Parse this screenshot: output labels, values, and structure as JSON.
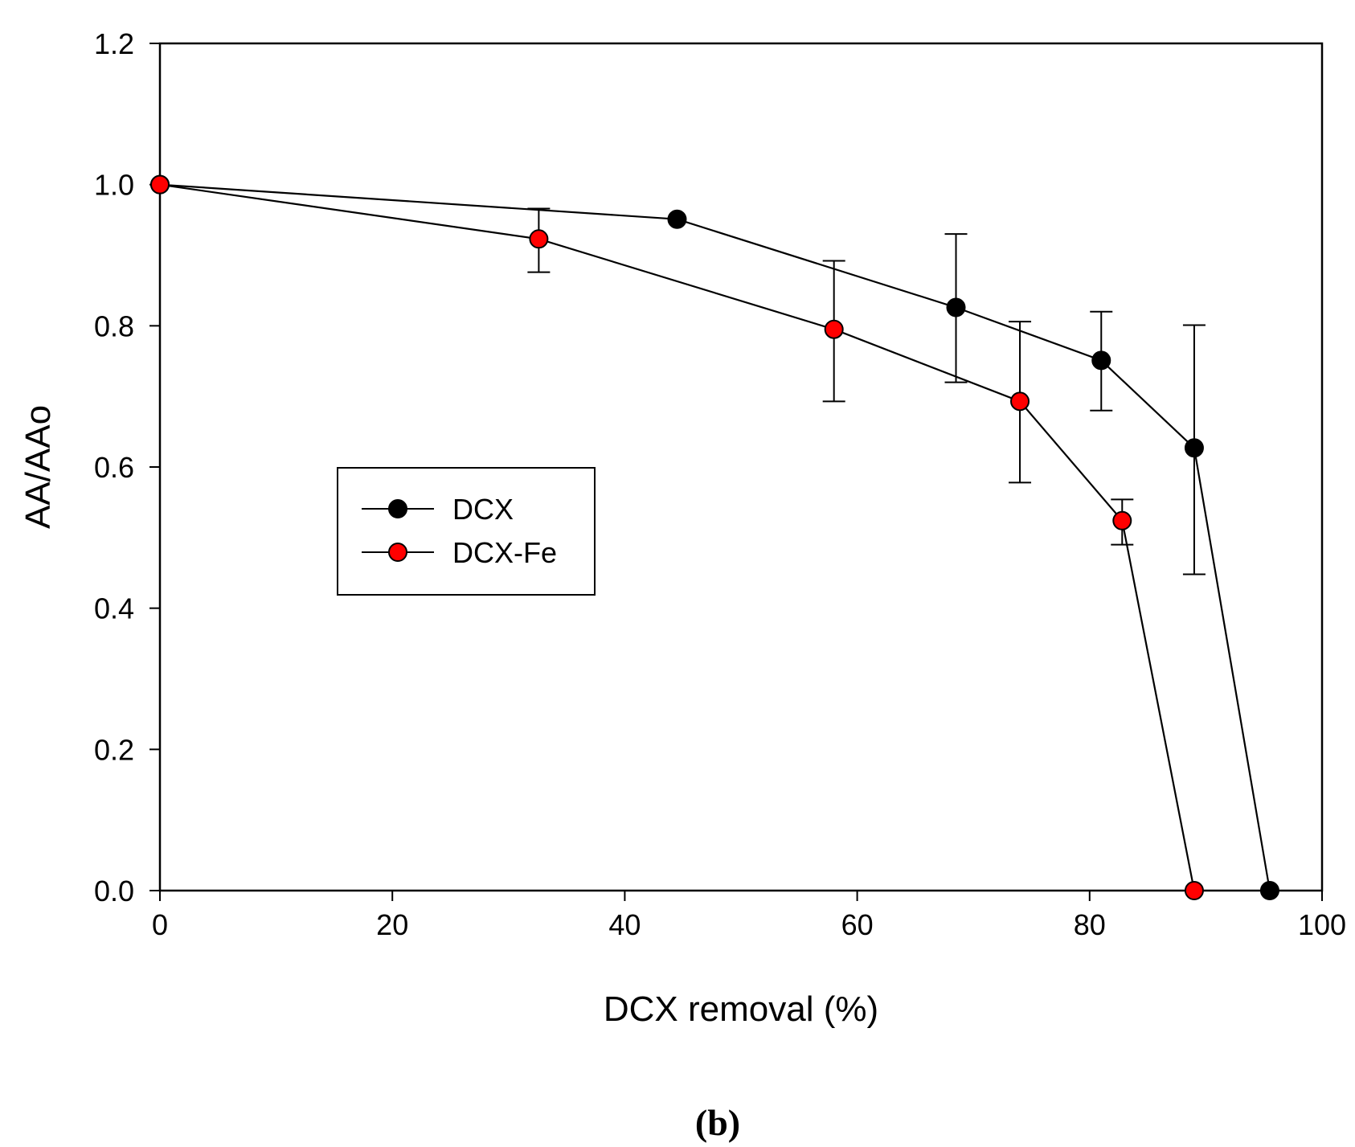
{
  "chart_data": {
    "type": "line",
    "title": "",
    "xlabel": "DCX removal (%)",
    "ylabel": "AA/AAo",
    "xlim": [
      0,
      100
    ],
    "ylim": [
      0.0,
      1.2
    ],
    "xticks": [
      "0",
      "20",
      "40",
      "60",
      "80",
      "100"
    ],
    "yticks": [
      "0.0",
      "0.2",
      "0.4",
      "0.6",
      "0.8",
      "1.0",
      "1.2"
    ],
    "grid": false,
    "legend_position": "center-left",
    "panel_label": "(b)",
    "series": [
      {
        "name": "DCX",
        "marker_color": "#000000",
        "line_color": "#000000",
        "points": [
          {
            "x": 0,
            "y": 1.0,
            "err_low": null,
            "err_high": null
          },
          {
            "x": 44.5,
            "y": 0.951,
            "err_low": null,
            "err_high": null
          },
          {
            "x": 68.5,
            "y": 0.826,
            "err_low": 0.72,
            "err_high": 0.93
          },
          {
            "x": 81.0,
            "y": 0.751,
            "err_low": 0.68,
            "err_high": 0.82
          },
          {
            "x": 89.0,
            "y": 0.627,
            "err_low": 0.448,
            "err_high": 0.801
          },
          {
            "x": 95.5,
            "y": 0.0,
            "err_low": null,
            "err_high": null
          }
        ]
      },
      {
        "name": "DCX-Fe",
        "marker_color": "#ff0000",
        "line_color": "#000000",
        "points": [
          {
            "x": 0,
            "y": 1.0,
            "err_low": null,
            "err_high": null
          },
          {
            "x": 32.6,
            "y": 0.923,
            "err_low": 0.876,
            "err_high": 0.966
          },
          {
            "x": 58.0,
            "y": 0.795,
            "err_low": 0.693,
            "err_high": 0.892
          },
          {
            "x": 74.0,
            "y": 0.693,
            "err_low": 0.578,
            "err_high": 0.806
          },
          {
            "x": 82.8,
            "y": 0.524,
            "err_low": 0.49,
            "err_high": 0.554
          },
          {
            "x": 89.0,
            "y": 0.0,
            "err_low": null,
            "err_high": null
          }
        ]
      }
    ]
  }
}
